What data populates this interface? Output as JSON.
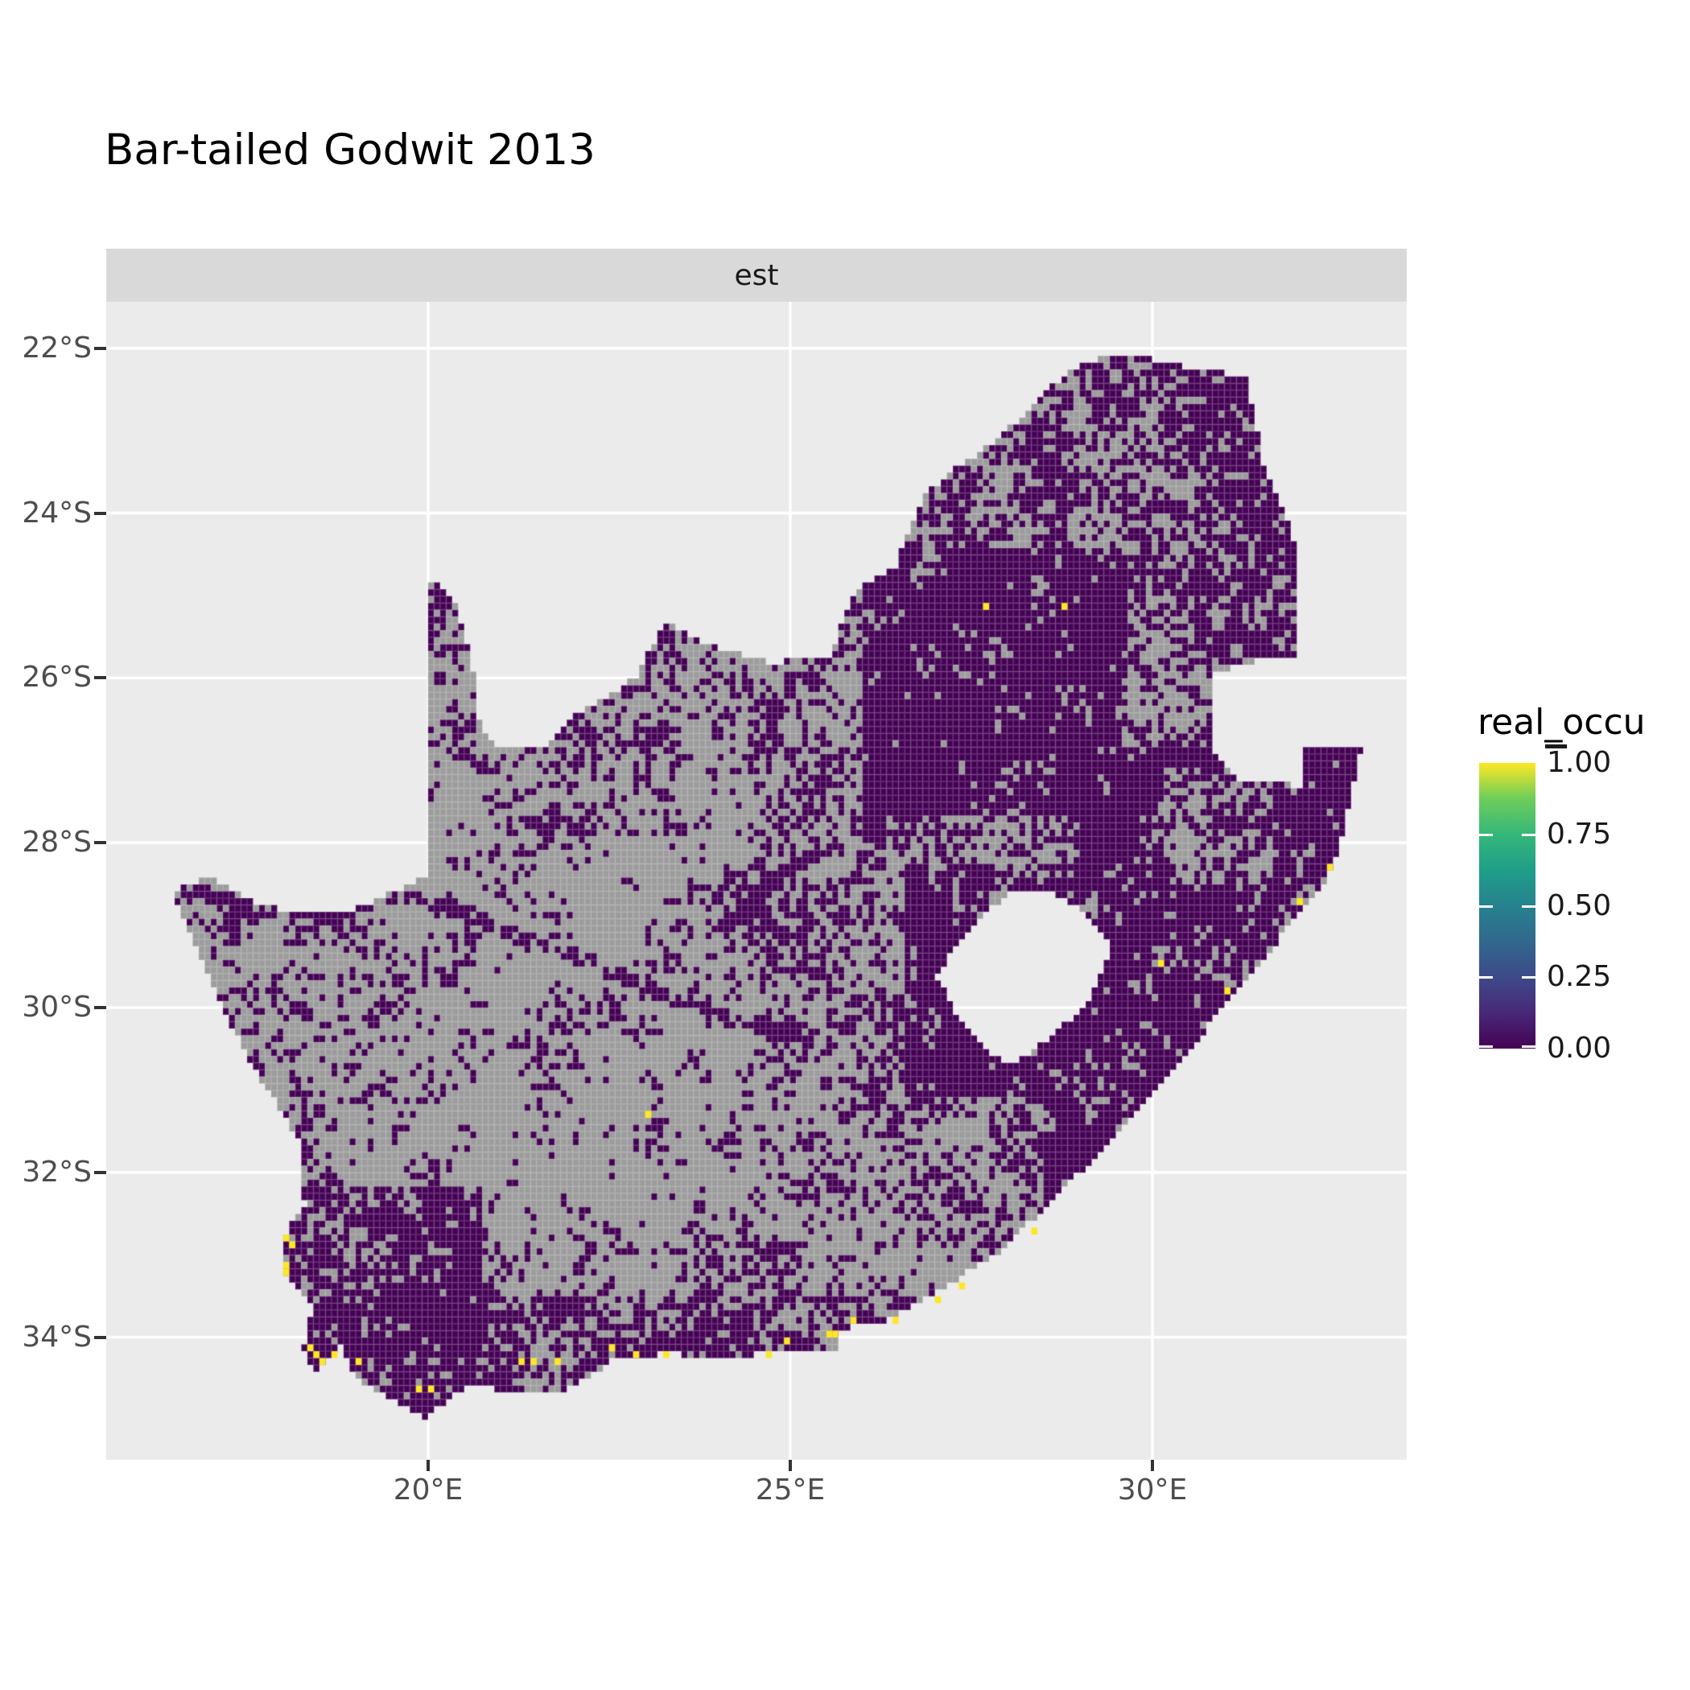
{
  "title": "Bar-tailed Godwit 2013",
  "facet": {
    "label": "est"
  },
  "axes": {
    "y": {
      "ticks": [
        {
          "label": "22°S",
          "value": -22
        },
        {
          "label": "24°S",
          "value": -24
        },
        {
          "label": "26°S",
          "value": -26
        },
        {
          "label": "28°S",
          "value": -28
        },
        {
          "label": "30°S",
          "value": -30
        },
        {
          "label": "32°S",
          "value": -32
        },
        {
          "label": "34°S",
          "value": -34
        }
      ]
    },
    "x": {
      "ticks": [
        {
          "label": "20°E",
          "value": 20
        },
        {
          "label": "25°E",
          "value": 25
        },
        {
          "label": "30°E",
          "value": 30
        }
      ]
    }
  },
  "legend": {
    "title": "real_occu",
    "ticks": [
      {
        "label": "1.00",
        "value": 1.0
      },
      {
        "label": "0.75",
        "value": 0.75
      },
      {
        "label": "0.50",
        "value": 0.5
      },
      {
        "label": "0.25",
        "value": 0.25
      },
      {
        "label": "0.00",
        "value": 0.0
      }
    ],
    "viridis_stops": [
      "#440154",
      "#482878",
      "#3E4A89",
      "#31688E",
      "#26828E",
      "#1F9E89",
      "#35B779",
      "#6DCE59",
      "#FDE725"
    ]
  },
  "colors": {
    "panel_bg": "#EBEBEB",
    "strip_bg": "#D9D9D9",
    "gridline": "#FFFFFF",
    "occ_zero": "#440154",
    "occ_one": "#FDE725",
    "no_data_gray": "#9C9C9C",
    "axis_text": "#4D4D4D",
    "tick_mark": "#333333",
    "title_text": "#000000"
  },
  "chart_data": {
    "type": "heatmap",
    "title": "Bar-tailed Godwit 2013",
    "facet_label": "est",
    "xlabel": "",
    "ylabel": "",
    "x_ticks_deg_east": [
      20,
      25,
      30
    ],
    "y_ticks_deg_south": [
      22,
      24,
      26,
      28,
      30,
      32,
      34
    ],
    "legend_title": "real_occu",
    "legend_range": [
      0.0,
      1.0
    ],
    "cell_size_deg": 0.0833,
    "extent": {
      "lon": [
        16.45,
        32.95
      ],
      "lat": [
        -35.05,
        -22.1
      ]
    },
    "value_colors": {
      "occupancy_0": "#440154",
      "occupancy_1": "#FDE725",
      "no_data": "#9C9C9C"
    },
    "occupied_cells_lonlat": [
      [
        18.08,
        -32.83
      ],
      [
        18.1,
        -32.95
      ],
      [
        18.0,
        -33.2
      ],
      [
        18.02,
        -33.32
      ],
      [
        18.35,
        -34.2
      ],
      [
        18.42,
        -34.3
      ],
      [
        18.5,
        -34.38
      ],
      [
        18.72,
        -34.25
      ],
      [
        19.08,
        -34.4
      ],
      [
        19.88,
        -34.72
      ],
      [
        20.02,
        -34.72
      ],
      [
        21.32,
        -34.4
      ],
      [
        21.45,
        -34.4
      ],
      [
        21.83,
        -34.4
      ],
      [
        22.57,
        -34.2
      ],
      [
        22.9,
        -34.3
      ],
      [
        23.32,
        -34.25
      ],
      [
        24.74,
        -34.3
      ],
      [
        24.98,
        -34.13
      ],
      [
        25.5,
        -34.06
      ],
      [
        25.58,
        -34.0
      ],
      [
        25.83,
        -33.87
      ],
      [
        26.49,
        -33.87
      ],
      [
        27.07,
        -33.62
      ],
      [
        27.4,
        -33.44
      ],
      [
        28.33,
        -32.81
      ],
      [
        23.07,
        -31.38
      ],
      [
        30.1,
        -29.52
      ],
      [
        31.02,
        -29.87
      ],
      [
        32.05,
        -28.78
      ],
      [
        32.43,
        -28.35
      ],
      [
        27.72,
        -25.22
      ],
      [
        28.77,
        -25.22
      ]
    ],
    "outline": [
      [
        16.45,
        -28.58
      ],
      [
        17.0,
        -28.42
      ],
      [
        17.55,
        -28.7
      ],
      [
        18.2,
        -28.87
      ],
      [
        18.9,
        -28.85
      ],
      [
        19.5,
        -28.6
      ],
      [
        19.98,
        -28.42
      ],
      [
        19.98,
        -24.75
      ],
      [
        20.4,
        -25.1
      ],
      [
        20.62,
        -25.9
      ],
      [
        20.65,
        -26.45
      ],
      [
        20.9,
        -26.82
      ],
      [
        21.6,
        -26.87
      ],
      [
        22.05,
        -26.42
      ],
      [
        22.6,
        -26.17
      ],
      [
        22.9,
        -25.95
      ],
      [
        23.25,
        -25.32
      ],
      [
        23.95,
        -25.62
      ],
      [
        24.75,
        -25.82
      ],
      [
        25.55,
        -25.72
      ],
      [
        25.9,
        -24.95
      ],
      [
        26.45,
        -24.65
      ],
      [
        26.85,
        -23.8
      ],
      [
        27.15,
        -23.55
      ],
      [
        28.0,
        -23.0
      ],
      [
        28.4,
        -22.62
      ],
      [
        29.05,
        -22.15
      ],
      [
        29.7,
        -22.08
      ],
      [
        30.3,
        -22.2
      ],
      [
        31.3,
        -22.35
      ],
      [
        31.55,
        -23.45
      ],
      [
        31.95,
        -24.3
      ],
      [
        31.98,
        -25.1
      ],
      [
        32.03,
        -25.65
      ],
      [
        32.05,
        -26.85
      ],
      [
        32.89,
        -26.86
      ],
      [
        32.62,
        -27.95
      ],
      [
        32.42,
        -28.45
      ],
      [
        31.95,
        -28.95
      ],
      [
        31.35,
        -29.6
      ],
      [
        30.7,
        -30.3
      ],
      [
        30.1,
        -30.95
      ],
      [
        29.4,
        -31.65
      ],
      [
        28.6,
        -32.35
      ],
      [
        27.85,
        -33.0
      ],
      [
        27.1,
        -33.4
      ],
      [
        26.3,
        -33.8
      ],
      [
        25.65,
        -33.9
      ],
      [
        25.62,
        -34.2
      ],
      [
        25.0,
        -34.15
      ],
      [
        24.15,
        -34.25
      ],
      [
        23.35,
        -34.2
      ],
      [
        22.6,
        -34.25
      ],
      [
        21.9,
        -34.65
      ],
      [
        21.2,
        -34.65
      ],
      [
        20.5,
        -34.6
      ],
      [
        19.95,
        -35.0
      ],
      [
        19.4,
        -34.7
      ],
      [
        18.95,
        -34.45
      ],
      [
        18.78,
        -34.1
      ],
      [
        18.45,
        -34.45
      ],
      [
        18.28,
        -34.15
      ],
      [
        18.4,
        -33.6
      ],
      [
        17.95,
        -33.2
      ],
      [
        18.05,
        -32.7
      ],
      [
        18.3,
        -32.45
      ],
      [
        18.22,
        -31.6
      ],
      [
        17.65,
        -30.8
      ],
      [
        17.2,
        -30.1
      ],
      [
        16.85,
        -29.4
      ]
    ],
    "holes": {
      "lesotho": [
        [
          27.05,
          -29.55
        ],
        [
          27.55,
          -28.95
        ],
        [
          28.0,
          -28.62
        ],
        [
          28.65,
          -28.6
        ],
        [
          29.05,
          -28.85
        ],
        [
          29.45,
          -29.3
        ],
        [
          29.1,
          -29.95
        ],
        [
          28.55,
          -30.4
        ],
        [
          28.05,
          -30.68
        ],
        [
          27.7,
          -30.52
        ],
        [
          27.35,
          -30.15
        ],
        [
          27.0,
          -29.58
        ]
      ],
      "eswatini": [
        [
          30.85,
          -25.95
        ],
        [
          31.35,
          -25.8
        ],
        [
          32.1,
          -25.78
        ],
        [
          32.12,
          -26.3
        ],
        [
          32.1,
          -27.32
        ],
        [
          31.15,
          -27.22
        ],
        [
          30.84,
          -26.9
        ],
        [
          30.8,
          -26.4
        ]
      ]
    },
    "density_regions": [
      {
        "b": [
          16.0,
          33.5,
          -21.5,
          -36.0
        ],
        "p": 0.3
      },
      {
        "b": [
          19.0,
          25.2,
          -27.9,
          -32.7
        ],
        "p": 0.13
      },
      {
        "b": [
          16.3,
          19.0,
          -27.9,
          -32.2
        ],
        "p": 0.33
      },
      {
        "b": [
          18.6,
          20.2,
          -29.2,
          -32.0
        ],
        "p": 0.2
      },
      {
        "b": [
          19.9,
          24.6,
          -24.6,
          -27.9
        ],
        "p": 0.35
      },
      {
        "b": [
          21.8,
          26.4,
          -25.1,
          -27.0
        ],
        "p": 0.45
      },
      {
        "b": [
          24.6,
          28.7,
          -27.6,
          -30.4
        ],
        "p": 0.45
      },
      {
        "b": [
          24.2,
          28.7,
          -30.4,
          -32.9
        ],
        "p": 0.38
      },
      {
        "b": [
          26.3,
          32.1,
          -22.0,
          -24.45
        ],
        "p": 0.56
      },
      {
        "b": [
          26.0,
          29.55,
          -24.45,
          -27.7
        ],
        "p": 0.96
      },
      {
        "b": [
          29.55,
          30.7,
          -24.45,
          -26.2
        ],
        "p": 0.55
      },
      {
        "b": [
          30.6,
          32.1,
          -22.2,
          -25.85
        ],
        "p": 0.78
      },
      {
        "b": [
          29.0,
          33.0,
          -26.8,
          -31.8
        ],
        "p": 0.92
      },
      {
        "b": [
          30.2,
          31.7,
          -27.05,
          -28.5
        ],
        "p": 0.5
      },
      {
        "b": [
          26.55,
          30.0,
          -28.25,
          -31.05
        ],
        "p": 0.88
      },
      {
        "b": [
          28.5,
          30.3,
          -31.0,
          -33.3
        ],
        "p": 0.8
      },
      {
        "b": [
          17.75,
          20.75,
          -32.2,
          -35.2
        ],
        "p": 0.86
      },
      {
        "b": [
          20.75,
          27.4,
          -33.5,
          -35.2
        ],
        "p": 0.62
      }
    ],
    "rivers": [
      {
        "pts": [
          [
            16.6,
            -28.55
          ],
          [
            17.6,
            -28.8
          ],
          [
            18.6,
            -28.85
          ],
          [
            19.5,
            -28.65
          ],
          [
            20.35,
            -28.8
          ],
          [
            21.1,
            -29.1
          ],
          [
            22.1,
            -29.4
          ],
          [
            23.1,
            -29.8
          ],
          [
            24.0,
            -30.1
          ],
          [
            24.9,
            -30.3
          ],
          [
            25.6,
            -30.5
          ]
        ],
        "w": 0.09,
        "p": 0.88
      },
      {
        "pts": [
          [
            24.1,
            -29.05
          ],
          [
            24.9,
            -28.35
          ],
          [
            25.8,
            -27.95
          ],
          [
            26.8,
            -27.35
          ],
          [
            27.6,
            -26.95
          ]
        ],
        "w": 0.09,
        "p": 0.88
      }
    ]
  }
}
